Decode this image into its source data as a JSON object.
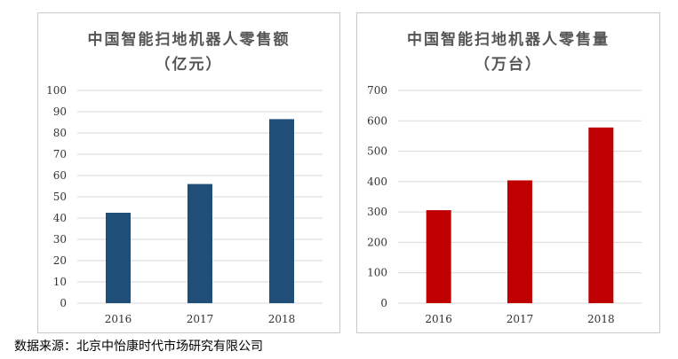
{
  "chart_data": [
    {
      "type": "bar",
      "title": "中国智能扫地机器人零售额",
      "subtitle": "（亿元）",
      "categories": [
        "2016",
        "2017",
        "2018"
      ],
      "values": [
        42.5,
        56,
        86.5
      ],
      "ylim": [
        0,
        100
      ],
      "yticks": [
        "0",
        "10",
        "20",
        "30",
        "40",
        "50",
        "60",
        "70",
        "80",
        "90",
        "100"
      ],
      "color": "#1f4e79",
      "grid": true
    },
    {
      "type": "bar",
      "title": "中国智能扫地机器人零售量",
      "subtitle": "（万台）",
      "categories": [
        "2016",
        "2017",
        "2018"
      ],
      "values": [
        306,
        404,
        578
      ],
      "ylim": [
        0,
        700
      ],
      "yticks": [
        "0",
        "100",
        "200",
        "300",
        "400",
        "500",
        "600",
        "700"
      ],
      "color": "#c00000",
      "grid": true
    }
  ],
  "source_text": "数据来源：北京中怡康时代市场研究有限公司"
}
